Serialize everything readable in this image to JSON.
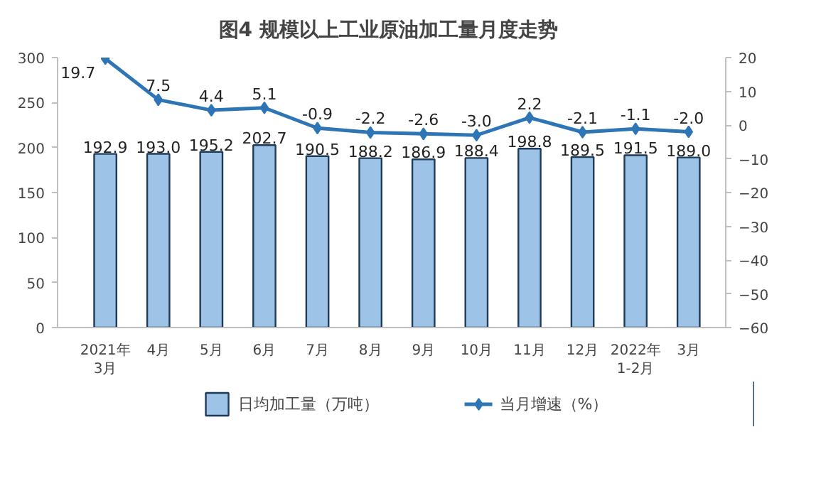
{
  "chart_data": {
    "type": "bar",
    "title": "图4  规模以上工业原油加工量月度走势",
    "categories": [
      "2021年\n3月",
      "4月",
      "5月",
      "6月",
      "7月",
      "8月",
      "9月",
      "10月",
      "11月",
      "12月",
      "2022年\n1-2月",
      "3月"
    ],
    "series": [
      {
        "name": "日均加工量（万吨）",
        "color": "#9dc3e6",
        "values": [
          192.9,
          193.0,
          195.2,
          202.7,
          190.5,
          188.2,
          186.9,
          188.4,
          198.8,
          189.5,
          191.5,
          189.0
        ],
        "value_labels": [
          "192.9",
          "193.0",
          "195.2",
          "202.7",
          "190.5",
          "188.2",
          "186.9",
          "188.4",
          "198.8",
          "189.5",
          "191.5",
          "189.0"
        ]
      },
      {
        "name": "当月增速（%）",
        "type": "line",
        "axis": "y2",
        "color": "#2e75b6",
        "marker": "diamond",
        "values": [
          19.7,
          7.5,
          4.4,
          5.1,
          -0.9,
          -2.2,
          -2.6,
          -3.0,
          2.2,
          -2.1,
          -1.1,
          -2.0
        ],
        "value_labels": [
          "19.7",
          "7.5",
          "4.4",
          "5.1",
          "-0.9",
          "-2.2",
          "-2.6",
          "-3.0",
          "2.2",
          "-2.1",
          "-1.1",
          "-2.0"
        ]
      }
    ],
    "ylim": [
      0,
      300
    ],
    "yticks": [
      0,
      50,
      100,
      150,
      200,
      250,
      300
    ],
    "y2lim": [
      -60,
      20
    ],
    "y2ticks": [
      -60,
      -50,
      -40,
      -30,
      -20,
      -10,
      0,
      10,
      20
    ],
    "legend": "bottom"
  }
}
